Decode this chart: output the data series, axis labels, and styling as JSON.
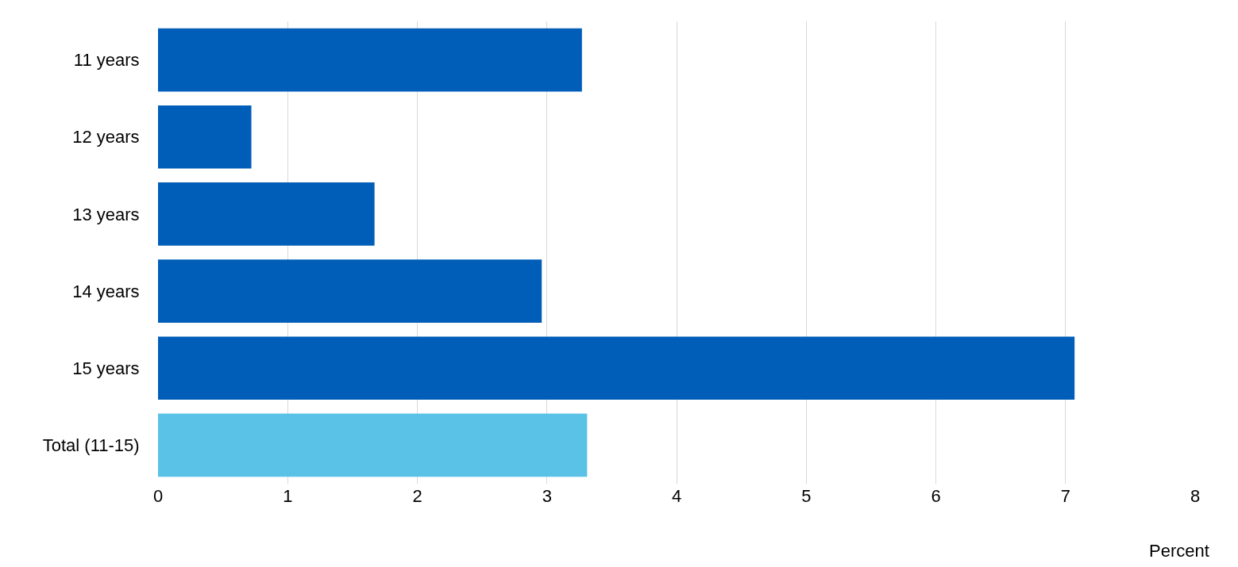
{
  "chart_data": {
    "type": "bar",
    "orientation": "horizontal",
    "xlabel": "Percent",
    "categories": [
      "11 years",
      "12 years",
      "13 years",
      "14 years",
      "15 years",
      "Total (11-15)"
    ],
    "values": [
      3.27,
      0.72,
      1.67,
      2.96,
      7.07,
      3.31
    ],
    "colors": [
      "#005eb8",
      "#005eb8",
      "#005eb8",
      "#005eb8",
      "#005eb8",
      "#5bc2e7"
    ],
    "xlim": [
      0,
      8
    ],
    "xticks": [
      0,
      1,
      2,
      3,
      4,
      5,
      6,
      7,
      8
    ],
    "grid": "x",
    "legend": false
  }
}
